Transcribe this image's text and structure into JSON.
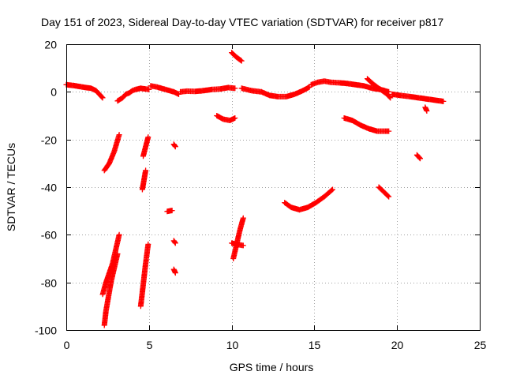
{
  "chart_data": {
    "type": "scatter",
    "title": "Day 151 of 2023, Sidereal Day-to-day VTEC variation (SDTVAR) for receiver p817",
    "xlabel": "GPS time / hours",
    "ylabel": "SDTVAR / TECUs",
    "xlim": [
      0,
      25
    ],
    "ylim": [
      -100,
      20
    ],
    "xticks": [
      0,
      5,
      10,
      15,
      20,
      25
    ],
    "yticks": [
      -100,
      -80,
      -60,
      -40,
      -20,
      0,
      20
    ],
    "grid": true,
    "marker": "plus",
    "color": "#ff0000",
    "series": [
      {
        "name": "near-zero trace",
        "points": [
          [
            0,
            3
          ],
          [
            0.5,
            2.6
          ],
          [
            1,
            2
          ],
          [
            1.5,
            1.5
          ],
          [
            1.8,
            0.5
          ],
          [
            2.0,
            -1
          ],
          [
            2.2,
            -2.5
          ]
        ]
      },
      {
        "name": "near-zero trace",
        "points": [
          [
            3.1,
            -3.8
          ],
          [
            3.4,
            -2.5
          ],
          [
            3.6,
            -1
          ],
          [
            3.8,
            -0.5
          ],
          [
            4,
            0.5
          ],
          [
            4.2,
            1
          ],
          [
            4.5,
            1.5
          ],
          [
            4.8,
            1.2
          ],
          [
            5,
            1
          ]
        ]
      },
      {
        "name": "near-zero trace",
        "points": [
          [
            5.1,
            2.5
          ],
          [
            5.5,
            2
          ],
          [
            6,
            1
          ],
          [
            6.5,
            0
          ],
          [
            6.8,
            -1
          ]
        ]
      },
      {
        "name": "near-zero trace",
        "points": [
          [
            6.9,
            0
          ],
          [
            7.3,
            0.3
          ],
          [
            7.8,
            0.2
          ],
          [
            8.3,
            0.5
          ],
          [
            8.8,
            1
          ],
          [
            9.3,
            1.2
          ],
          [
            9.8,
            1.8
          ],
          [
            10.2,
            1.5
          ]
        ]
      },
      {
        "name": "near-zero trace",
        "points": [
          [
            10.6,
            1.5
          ],
          [
            11.2,
            0.5
          ],
          [
            11.8,
            0
          ],
          [
            12.3,
            -1.5
          ],
          [
            12.8,
            -2
          ],
          [
            13.3,
            -2
          ],
          [
            13.8,
            -1
          ],
          [
            14.3,
            0.5
          ],
          [
            14.7,
            2
          ]
        ]
      },
      {
        "name": "near-zero trace",
        "points": [
          [
            14.8,
            3
          ],
          [
            15.2,
            4
          ],
          [
            15.6,
            4.5
          ],
          [
            16,
            4
          ],
          [
            16.5,
            3.8
          ],
          [
            17,
            3.5
          ],
          [
            17.5,
            3
          ],
          [
            18,
            2.5
          ],
          [
            18.5,
            1.5
          ],
          [
            19,
            1
          ],
          [
            19.5,
            0
          ]
        ]
      },
      {
        "name": "near-zero trace",
        "points": [
          [
            19.7,
            -1
          ],
          [
            20.2,
            -1.5
          ],
          [
            20.8,
            -2
          ],
          [
            21.3,
            -2.5
          ],
          [
            21.8,
            -3
          ],
          [
            22.3,
            -3.5
          ],
          [
            22.8,
            -4
          ]
        ]
      },
      {
        "name": "descending arc",
        "points": [
          [
            18.2,
            5.5
          ],
          [
            18.6,
            3
          ],
          [
            19.0,
            1
          ],
          [
            19.4,
            -1
          ],
          [
            19.6,
            -2.5
          ]
        ]
      },
      {
        "name": "upper spike",
        "points": [
          [
            10.0,
            16.5
          ],
          [
            10.3,
            14.5
          ],
          [
            10.6,
            13
          ]
        ]
      },
      {
        "name": "short arc",
        "points": [
          [
            9.1,
            -10
          ],
          [
            9.5,
            -11.5
          ],
          [
            9.9,
            -12
          ],
          [
            10.2,
            -11
          ]
        ]
      },
      {
        "name": "isolated",
        "points": [
          [
            21.7,
            -6.5
          ],
          [
            21.8,
            -8
          ]
        ]
      },
      {
        "name": "isolated",
        "points": [
          [
            6.5,
            -22
          ],
          [
            6.6,
            -23
          ]
        ]
      },
      {
        "name": "isolated",
        "points": [
          [
            21.2,
            -26.5
          ],
          [
            21.4,
            -28
          ]
        ]
      },
      {
        "name": "isolated",
        "points": [
          [
            6.1,
            -50.2
          ],
          [
            6.4,
            -49.8
          ]
        ]
      },
      {
        "name": "isolated",
        "points": [
          [
            6.5,
            -62.5
          ],
          [
            6.6,
            -63.5
          ]
        ]
      },
      {
        "name": "isolated",
        "points": [
          [
            6.5,
            -74.5
          ],
          [
            6.6,
            -76
          ]
        ]
      },
      {
        "name": "descending arc",
        "points": [
          [
            16.8,
            -11
          ],
          [
            17.3,
            -12
          ],
          [
            17.8,
            -14
          ],
          [
            18.3,
            -15.5
          ],
          [
            18.8,
            -16.5
          ],
          [
            19.3,
            -16.5
          ],
          [
            19.5,
            -16.5
          ]
        ]
      },
      {
        "name": "steep segment",
        "points": [
          [
            2.3,
            -33
          ],
          [
            2.6,
            -30
          ],
          [
            2.9,
            -25
          ],
          [
            3.2,
            -18
          ]
        ]
      },
      {
        "name": "steep segment",
        "points": [
          [
            4.6,
            -41
          ],
          [
            4.7,
            -37
          ],
          [
            4.8,
            -33
          ]
        ]
      },
      {
        "name": "steep segment",
        "points": [
          [
            4.65,
            -27
          ],
          [
            4.8,
            -23
          ],
          [
            4.95,
            -19
          ]
        ]
      },
      {
        "name": "smooth arc",
        "points": [
          [
            13.2,
            -46.5
          ],
          [
            13.6,
            -48.5
          ],
          [
            14.1,
            -49.5
          ],
          [
            14.6,
            -48.5
          ],
          [
            15.1,
            -46.5
          ],
          [
            15.6,
            -44
          ],
          [
            16.1,
            -41
          ]
        ]
      },
      {
        "name": "short arc",
        "points": [
          [
            18.9,
            -40
          ],
          [
            19.2,
            -42
          ],
          [
            19.5,
            -44
          ]
        ]
      },
      {
        "name": "steep segment",
        "points": [
          [
            10.1,
            -70
          ],
          [
            10.3,
            -64
          ],
          [
            10.5,
            -58
          ],
          [
            10.7,
            -53
          ]
        ]
      },
      {
        "name": "short arc",
        "points": [
          [
            10,
            -63.5
          ],
          [
            10.3,
            -64
          ],
          [
            10.7,
            -64.5
          ]
        ]
      },
      {
        "name": "steep segment",
        "points": [
          [
            2.2,
            -85
          ],
          [
            2.4,
            -80
          ],
          [
            2.6,
            -76
          ],
          [
            2.8,
            -72
          ],
          [
            3.0,
            -66
          ],
          [
            3.2,
            -60
          ]
        ]
      },
      {
        "name": "steep segment",
        "points": [
          [
            2.3,
            -98
          ],
          [
            2.4,
            -92
          ],
          [
            2.55,
            -86
          ],
          [
            2.7,
            -80
          ],
          [
            2.9,
            -74
          ],
          [
            3.1,
            -68
          ]
        ]
      },
      {
        "name": "steep segment",
        "points": [
          [
            4.5,
            -90
          ],
          [
            4.6,
            -84
          ],
          [
            4.7,
            -78
          ],
          [
            4.8,
            -72
          ],
          [
            4.95,
            -64
          ]
        ]
      }
    ]
  }
}
